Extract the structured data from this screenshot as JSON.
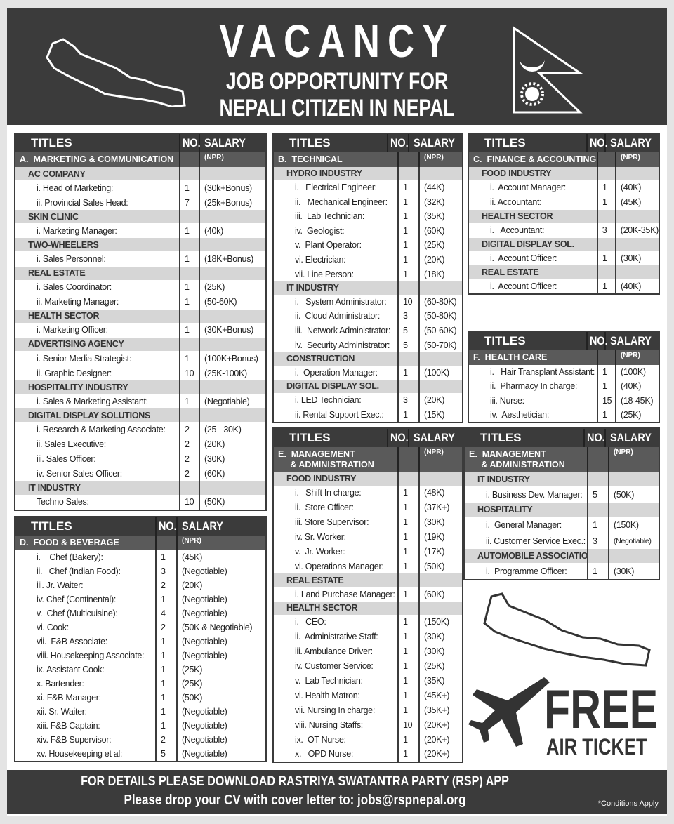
{
  "header": {
    "title": "VACANCY",
    "line1": "JOB OPPORTUNITY FOR",
    "line2": "NEPALI CITIZEN IN NEPAL"
  },
  "colors": {
    "dark": "#3b3b3b",
    "section": "#5a5a5a",
    "subheader": "#d6d6d6"
  },
  "tables": [
    {
      "id": "A",
      "titles": "TITLES",
      "no": "NO.",
      "salary": "SALARY",
      "npr": "(NPR)",
      "section": "A.  MARKETING & COMMUNICATION",
      "rows": [
        {
          "sub": "AC COMPANY"
        },
        {
          "t": "i. Head of Marketing:",
          "n": "1",
          "s": "(30k+Bonus)"
        },
        {
          "t": "ii. Provincial Sales Head:",
          "n": "7",
          "s": "(25k+Bonus)"
        },
        {
          "sub": "SKIN CLINIC"
        },
        {
          "t": "i. Marketing Manager:",
          "n": "1",
          "s": "(40k)"
        },
        {
          "sub": "TWO-WHEELERS"
        },
        {
          "t": "i. Sales Personnel:",
          "n": "1",
          "s": "(18K+Bonus)"
        },
        {
          "sub": "REAL ESTATE"
        },
        {
          "t": "i. Sales Coordinator:",
          "n": "1",
          "s": "(25K)"
        },
        {
          "t": "ii. Marketing Manager:",
          "n": "1",
          "s": "(50-60K)"
        },
        {
          "sub": "HEALTH SECTOR"
        },
        {
          "t": "i. Marketing Officer:",
          "n": "1",
          "s": "(30K+Bonus)"
        },
        {
          "sub": "ADVERTISING AGENCY"
        },
        {
          "t": "i. Senior Media Strategist:",
          "n": "1",
          "s": "(100K+Bonus)"
        },
        {
          "t": "ii. Graphic Designer:",
          "n": "10",
          "s": "(25K-100K)"
        },
        {
          "sub": "HOSPITALITY INDUSTRY"
        },
        {
          "t": "i. Sales & Marketing Assistant:",
          "n": "1",
          "s": "(Negotiable)"
        },
        {
          "sub": "DIGITAL DISPLAY SOLUTIONS"
        },
        {
          "t": "i. Research & Marketing Associate:",
          "n": "2",
          "s": "(25 - 30K)"
        },
        {
          "t": "ii. Sales Executive:",
          "n": "2",
          "s": "(20K)"
        },
        {
          "t": "iii. Sales Officer:",
          "n": "2",
          "s": "(30K)"
        },
        {
          "t": "iv. Senior Sales Officer:",
          "n": "2",
          "s": "(60K)"
        },
        {
          "sub": "IT INDUSTRY"
        },
        {
          "t": "Techno Sales:",
          "n": "10",
          "s": "(50K)"
        }
      ]
    },
    {
      "id": "D",
      "titles": "TITLES",
      "no": "NO.",
      "salary": "SALARY",
      "npr": "(NPR)",
      "section": "D.  FOOD & BEVERAGE",
      "rows": [
        {
          "t": "i.    Chef (Bakery):",
          "n": "1",
          "s": "(45K)"
        },
        {
          "t": "ii.   Chef (Indian Food):",
          "n": "3",
          "s": "(Negotiable)"
        },
        {
          "t": "iii. Jr. Waiter:",
          "n": "2",
          "s": "(20K)"
        },
        {
          "t": "iv. Chef (Continental):",
          "n": "1",
          "s": "(Negotiable)"
        },
        {
          "t": "v.  Chef (Multicuisine):",
          "n": "4",
          "s": "(Negotiable)"
        },
        {
          "t": "vi. Cook:",
          "n": "2",
          "s": "(50K & Negotiable)"
        },
        {
          "t": "vii.  F&B Associate:",
          "n": "1",
          "s": "(Negotiable)"
        },
        {
          "t": "viii. Housekeeping Associate:",
          "n": "1",
          "s": "(Negotiable)"
        },
        {
          "t": "ix. Assistant Cook:",
          "n": "1",
          "s": "(25K)"
        },
        {
          "t": "x. Bartender:",
          "n": "1",
          "s": "(25K)"
        },
        {
          "t": "xi. F&B Manager:",
          "n": "1",
          "s": "(50K)"
        },
        {
          "t": "xii. Sr. Waiter:",
          "n": "1",
          "s": "(Negotiable)"
        },
        {
          "t": "xiii. F&B Captain:",
          "n": "1",
          "s": "(Negotiable)"
        },
        {
          "t": "xiv. F&B Supervisor:",
          "n": "2",
          "s": "(Negotiable)"
        },
        {
          "t": "xv. Housekeeping et al:",
          "n": "5",
          "s": "(Negotiable)"
        }
      ]
    },
    {
      "id": "B",
      "titles": "TITLES",
      "no": "NO.",
      "salary": "SALARY",
      "npr": "(NPR)",
      "section": "B.  TECHNICAL",
      "rows": [
        {
          "sub": "HYDRO INDUSTRY"
        },
        {
          "t": "i.   Electrical Engineer:",
          "n": "1",
          "s": "(44K)"
        },
        {
          "t": "ii.   Mechanical Engineer:",
          "n": "1",
          "s": "(32K)"
        },
        {
          "t": "iii.  Lab Technician:",
          "n": "1",
          "s": "(35K)"
        },
        {
          "t": "iv.  Geologist:",
          "n": "1",
          "s": "(60K)"
        },
        {
          "t": "v.  Plant Operator:",
          "n": "1",
          "s": "(25K)"
        },
        {
          "t": "vi. Electrician:",
          "n": "1",
          "s": "(20K)"
        },
        {
          "t": "vii. Line Person:",
          "n": "1",
          "s": "(18K)"
        },
        {
          "sub": "IT INDUSTRY"
        },
        {
          "t": "i.   System Administrator:",
          "n": "10",
          "s": "(60-80K)"
        },
        {
          "t": "ii.  Cloud Administrator:",
          "n": "3",
          "s": "(50-80K)"
        },
        {
          "t": "iii.  Network Administrator:",
          "n": "5",
          "s": "(50-60K)"
        },
        {
          "t": "iv.  Security Administrator:",
          "n": "5",
          "s": "(50-70K)"
        },
        {
          "sub": "CONSTRUCTION"
        },
        {
          "t": "i.  Operation Manager:",
          "n": "1",
          "s": "(100K)"
        },
        {
          "sub": "DIGITAL DISPLAY SOL."
        },
        {
          "t": "i. LED Technician:",
          "n": "3",
          "s": "(20K)"
        },
        {
          "t": "ii. Rental Support Exec.:",
          "n": "1",
          "s": "(15K)"
        }
      ]
    },
    {
      "id": "C",
      "titles": "TITLES",
      "no": "NO.",
      "salary": "SALARY",
      "npr": "(NPR)",
      "section": "C.  FINANCE & ACCOUNTING",
      "rows": [
        {
          "sub": "FOOD INDUSTRY"
        },
        {
          "t": "i.  Account Manager:",
          "n": "1",
          "s": "(40K)"
        },
        {
          "t": "ii. Accountant:",
          "n": "1",
          "s": "(45K)"
        },
        {
          "sub": "HEALTH SECTOR"
        },
        {
          "t": "i.   Accountant:",
          "n": "3",
          "s": "(20K-35K)"
        },
        {
          "sub": "DIGITAL DISPLAY SOL."
        },
        {
          "t": "i.  Account Officer:",
          "n": "1",
          "s": "(30K)"
        },
        {
          "sub": "REAL ESTATE"
        },
        {
          "t": "i.  Account Officer:",
          "n": "1",
          "s": "(40K)"
        }
      ]
    },
    {
      "id": "F",
      "titles": "TITLES",
      "no": "NO.",
      "salary": "SALARY",
      "npr": "(NPR)",
      "section": "F.  HEALTH CARE",
      "rows": [
        {
          "t": "i.   Hair Transplant Assistant:",
          "n": "1",
          "s": "(100K)"
        },
        {
          "t": "ii.  Pharmacy In charge:",
          "n": "1",
          "s": "(40K)"
        },
        {
          "t": "iii. Nurse:",
          "n": "15",
          "s": "(18-45K)"
        },
        {
          "t": "iv.  Aesthetician:",
          "n": "1",
          "s": "(25K)"
        }
      ]
    },
    {
      "id": "E1",
      "titles": "TITLES",
      "no": "NO.",
      "salary": "SALARY",
      "npr": "(NPR)",
      "section": "E.  MANAGEMENT\n     & ADMINISTRATION",
      "rows": [
        {
          "sub": "FOOD INDUSTRY"
        },
        {
          "t": "i.   Shift In charge:",
          "n": "1",
          "s": "(48K)"
        },
        {
          "t": "ii.  Store Officer:",
          "n": "1",
          "s": "(37K+)"
        },
        {
          "t": "iii. Store Supervisor:",
          "n": "1",
          "s": "(30K)"
        },
        {
          "t": "iv. Sr. Worker:",
          "n": "1",
          "s": "(19K)"
        },
        {
          "t": "v.  Jr. Worker:",
          "n": "1",
          "s": "(17K)"
        },
        {
          "t": "vi. Operations Manager:",
          "n": "1",
          "s": "(50K)"
        },
        {
          "sub": "REAL ESTATE"
        },
        {
          "t": "i. Land Purchase Manager:",
          "n": "1",
          "s": "(60K)"
        },
        {
          "sub": "HEALTH SECTOR"
        },
        {
          "t": "i.   CEO:",
          "n": "1",
          "s": "(150K)"
        },
        {
          "t": "ii.  Administrative Staff:",
          "n": "1",
          "s": "(30K)"
        },
        {
          "t": "iii. Ambulance Driver:",
          "n": "1",
          "s": "(30K)"
        },
        {
          "t": "iv. Customer Service:",
          "n": "1",
          "s": "(25K)"
        },
        {
          "t": "v.  Lab Technician:",
          "n": "1",
          "s": "(35K)"
        },
        {
          "t": "vi. Health Matron:",
          "n": "1",
          "s": "(45K+)"
        },
        {
          "t": "vii. Nursing In charge:",
          "n": "1",
          "s": "(35K+)"
        },
        {
          "t": "viii. Nursing Staffs:",
          "n": "10",
          "s": "(20K+)"
        },
        {
          "t": "ix.  OT Nurse:",
          "n": "1",
          "s": "(20K+)"
        },
        {
          "t": "x.   OPD Nurse:",
          "n": "1",
          "s": "(20K+)"
        }
      ]
    },
    {
      "id": "E2",
      "titles": "TITLES",
      "no": "NO.",
      "salary": "SALARY",
      "npr": "(NPR)",
      "section": "E.  MANAGEMENT\n     & ADMINISTRATION",
      "rows": [
        {
          "sub": "IT INDUSTRY"
        },
        {
          "t": "i. Business Dev. Manager:",
          "n": "5",
          "s": "(50K)"
        },
        {
          "sub": "HOSPITALITY"
        },
        {
          "t": "i.  General Manager:",
          "n": "1",
          "s": "(150K)"
        },
        {
          "t": "ii. Customer Service Exec.:",
          "n": "3",
          "s": "(Negotiable)"
        },
        {
          "sub": "AUTOMOBILE ASSOCIATION"
        },
        {
          "t": "i.  Programme Officer:",
          "n": "1",
          "s": "(30K)"
        }
      ]
    }
  ],
  "promo": {
    "free": "FREE",
    "air_ticket": "AIR TICKET"
  },
  "footer": {
    "line1": "FOR DETAILS PLEASE  DOWNLOAD RASTRIYA SWATANTRA PARTY (RSP) APP",
    "line2": "Please drop your CV with cover letter to:  jobs@rspnepal.org",
    "conditions": "*Conditions Apply"
  }
}
